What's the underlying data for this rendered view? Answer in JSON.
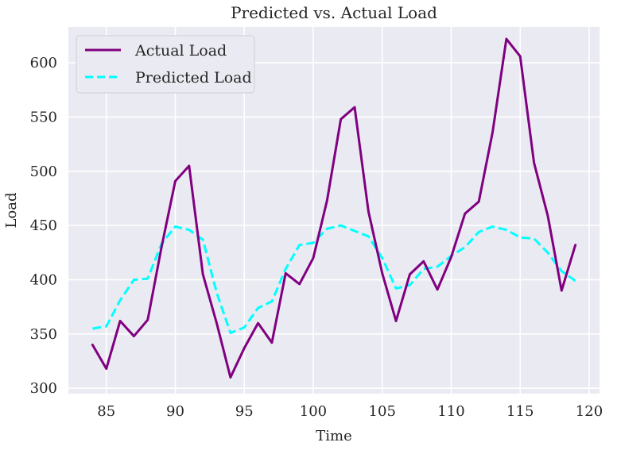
{
  "chart_data": {
    "type": "line",
    "title": "Predicted vs. Actual Load",
    "xlabel": "Time",
    "ylabel": "Load",
    "xlim": [
      82.25,
      120.75
    ],
    "ylim": [
      295,
      633
    ],
    "xticks": [
      85,
      90,
      95,
      100,
      105,
      110,
      115,
      120
    ],
    "yticks": [
      300,
      350,
      400,
      450,
      500,
      550,
      600
    ],
    "grid": true,
    "legend_position": "top-left",
    "x": [
      84,
      85,
      86,
      87,
      88,
      89,
      90,
      91,
      92,
      93,
      94,
      95,
      96,
      97,
      98,
      99,
      100,
      101,
      102,
      103,
      104,
      105,
      106,
      107,
      108,
      109,
      110,
      111,
      112,
      113,
      114,
      115,
      116,
      117,
      118,
      119
    ],
    "series": [
      {
        "name": "Actual Load",
        "color": "#800080",
        "style": "solid",
        "values": [
          340,
          318,
          362,
          348,
          363,
          430,
          491,
          505,
          405,
          360,
          310,
          337,
          360,
          342,
          406,
          396,
          420,
          473,
          548,
          559,
          463,
          406,
          362,
          405,
          417,
          391,
          421,
          461,
          472,
          536,
          622,
          606,
          508,
          459,
          390,
          432
        ]
      },
      {
        "name": "Predicted Load",
        "color": "#00FFFF",
        "style": "dashed",
        "values": [
          355,
          357,
          381,
          400,
          401,
          433,
          449,
          446,
          437,
          388,
          351,
          356,
          374,
          380,
          410,
          432,
          434,
          447,
          450,
          445,
          440,
          420,
          392,
          395,
          410,
          412,
          422,
          430,
          444,
          449,
          446,
          439,
          438,
          425,
          408,
          399
        ]
      }
    ]
  },
  "colors": {
    "plot_background": "#EAEAF2",
    "grid": "#FFFFFF",
    "text": "#262626"
  }
}
